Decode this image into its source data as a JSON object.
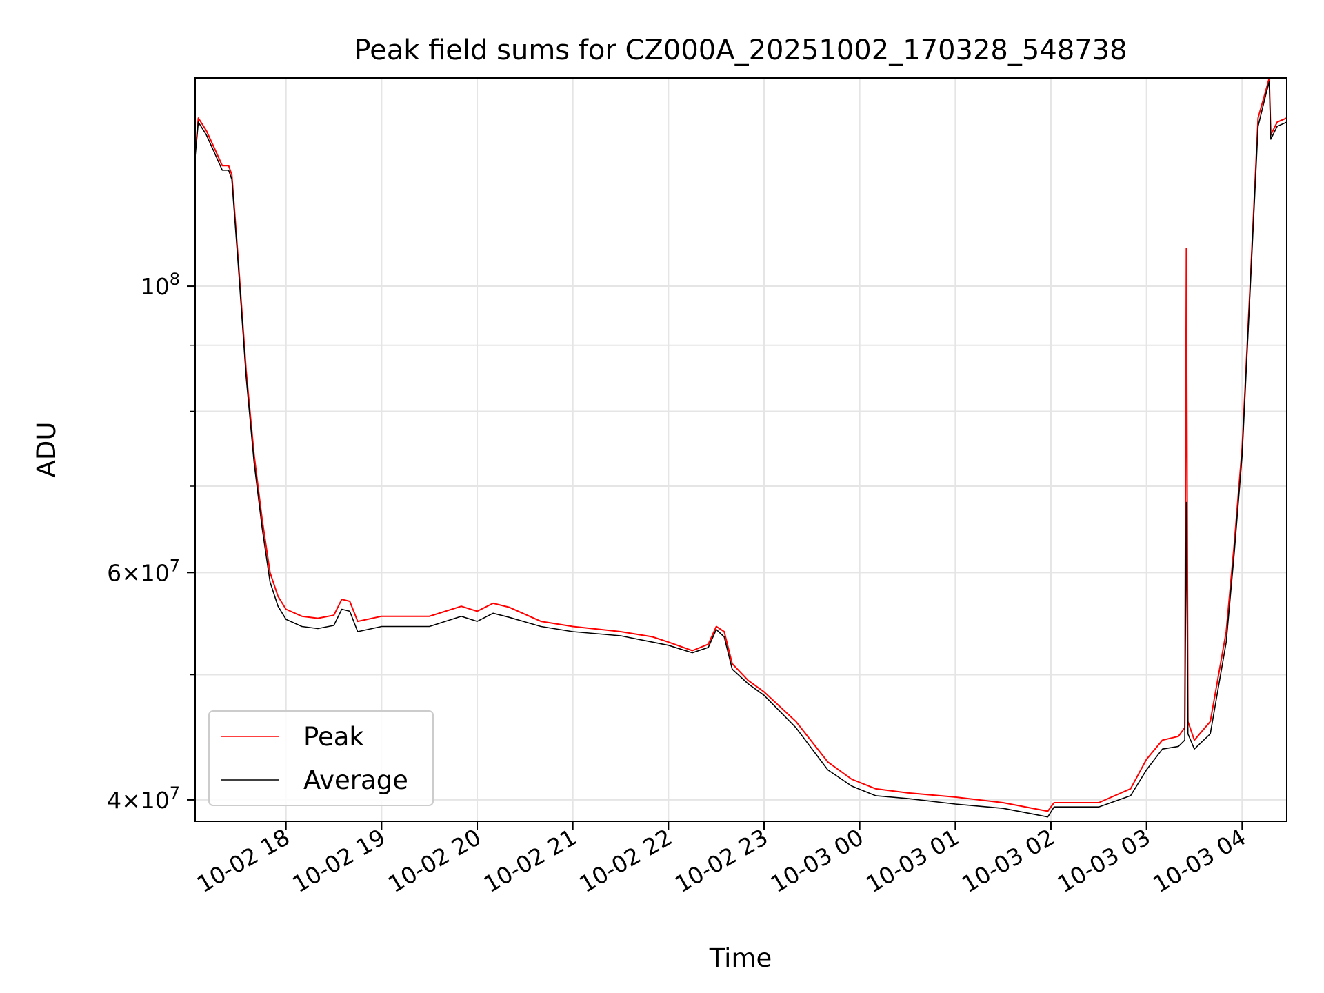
{
  "chart_data": {
    "type": "line",
    "title": "Peak field sums for CZ000A_20251002_170328_548738",
    "xlabel": "Time",
    "ylabel": "ADU",
    "yscale": "log",
    "xlim": [
      "2025-10-02 17:03",
      "2025-10-03 04:28"
    ],
    "ylim": [
      38500000,
      145000000
    ],
    "grid": true,
    "legend_position": "lower-left",
    "x_ticks": [
      {
        "value": "2025-10-02 18:00",
        "label": "10-02 18"
      },
      {
        "value": "2025-10-02 19:00",
        "label": "10-02 19"
      },
      {
        "value": "2025-10-02 20:00",
        "label": "10-02 20"
      },
      {
        "value": "2025-10-02 21:00",
        "label": "10-02 21"
      },
      {
        "value": "2025-10-02 22:00",
        "label": "10-02 22"
      },
      {
        "value": "2025-10-02 23:00",
        "label": "10-02 23"
      },
      {
        "value": "2025-10-03 00:00",
        "label": "10-03 00"
      },
      {
        "value": "2025-10-03 01:00",
        "label": "10-03 01"
      },
      {
        "value": "2025-10-03 02:00",
        "label": "10-03 02"
      },
      {
        "value": "2025-10-03 03:00",
        "label": "10-03 03"
      },
      {
        "value": "2025-10-03 04:00",
        "label": "10-03 04"
      }
    ],
    "y_major_ticks": [
      {
        "value": 40000000,
        "base": "4",
        "exp": "7"
      },
      {
        "value": 60000000,
        "base": "6",
        "exp": "7"
      },
      {
        "value": 100000000,
        "base": "",
        "exp": "8"
      }
    ],
    "y_minor_ticks": [
      50000000,
      70000000,
      80000000,
      90000000
    ],
    "series": [
      {
        "name": "Peak",
        "color": "#ff0000",
        "points": [
          [
            "2025-10-02 17:03",
            127000000.0
          ],
          [
            "2025-10-02 17:05",
            135000000.0
          ],
          [
            "2025-10-02 17:10",
            132000000.0
          ],
          [
            "2025-10-02 17:15",
            128000000.0
          ],
          [
            "2025-10-02 17:20",
            124000000.0
          ],
          [
            "2025-10-02 17:24",
            124000000.0
          ],
          [
            "2025-10-02 17:26",
            122000000.0
          ],
          [
            "2025-10-02 17:30",
            105000000.0
          ],
          [
            "2025-10-02 17:35",
            86000000.0
          ],
          [
            "2025-10-02 17:40",
            74000000.0
          ],
          [
            "2025-10-02 17:45",
            66000000.0
          ],
          [
            "2025-10-02 17:50",
            60000000.0
          ],
          [
            "2025-10-02 17:55",
            57500000.0
          ],
          [
            "2025-10-02 18:00",
            56200000.0
          ],
          [
            "2025-10-02 18:10",
            55500000.0
          ],
          [
            "2025-10-02 18:20",
            55300000.0
          ],
          [
            "2025-10-02 18:30",
            55600000.0
          ],
          [
            "2025-10-02 18:35",
            57200000.0
          ],
          [
            "2025-10-02 18:40",
            57000000.0
          ],
          [
            "2025-10-02 18:45",
            55000000.0
          ],
          [
            "2025-10-02 19:00",
            55500000.0
          ],
          [
            "2025-10-02 19:30",
            55500000.0
          ],
          [
            "2025-10-02 19:50",
            56500000.0
          ],
          [
            "2025-10-02 20:00",
            56000000.0
          ],
          [
            "2025-10-02 20:10",
            56800000.0
          ],
          [
            "2025-10-02 20:20",
            56400000.0
          ],
          [
            "2025-10-02 20:40",
            55000000.0
          ],
          [
            "2025-10-02 21:00",
            54500000.0
          ],
          [
            "2025-10-02 21:30",
            54000000.0
          ],
          [
            "2025-10-02 21:50",
            53500000.0
          ],
          [
            "2025-10-02 22:00",
            53000000.0
          ],
          [
            "2025-10-02 22:15",
            52200000.0
          ],
          [
            "2025-10-02 22:25",
            52800000.0
          ],
          [
            "2025-10-02 22:30",
            54500000.0
          ],
          [
            "2025-10-02 22:35",
            54000000.0
          ],
          [
            "2025-10-02 22:40",
            51000000.0
          ],
          [
            "2025-10-02 22:50",
            49500000.0
          ],
          [
            "2025-10-02 23:00",
            48500000.0
          ],
          [
            "2025-10-02 23:20",
            46000000.0
          ],
          [
            "2025-10-02 23:40",
            42800000.0
          ],
          [
            "2025-10-02 23:55",
            41500000.0
          ],
          [
            "2025-10-03 00:10",
            40800000.0
          ],
          [
            "2025-10-03 00:30",
            40500000.0
          ],
          [
            "2025-10-03 01:00",
            40200000.0
          ],
          [
            "2025-10-03 01:30",
            39800000.0
          ],
          [
            "2025-10-03 01:58",
            39200000.0
          ],
          [
            "2025-10-03 02:02",
            39800000.0
          ],
          [
            "2025-10-03 02:30",
            39800000.0
          ],
          [
            "2025-10-03 02:50",
            40800000.0
          ],
          [
            "2025-10-03 03:00",
            43000000.0
          ],
          [
            "2025-10-03 03:10",
            44500000.0
          ],
          [
            "2025-10-03 03:20",
            44800000.0
          ],
          [
            "2025-10-03 03:24",
            45500000.0
          ],
          [
            "2025-10-03 03:25",
            107000000.0
          ],
          [
            "2025-10-03 03:26",
            46000000.0
          ],
          [
            "2025-10-03 03:30",
            44500000.0
          ],
          [
            "2025-10-03 03:40",
            46000000.0
          ],
          [
            "2025-10-03 03:50",
            54000000.0
          ],
          [
            "2025-10-03 03:55",
            63000000.0
          ],
          [
            "2025-10-03 04:00",
            75000000.0
          ],
          [
            "2025-10-03 04:05",
            100000000.0
          ],
          [
            "2025-10-03 04:10",
            135000000.0
          ],
          [
            "2025-10-03 04:15",
            142000000.0
          ],
          [
            "2025-10-03 04:17",
            145000000.0
          ],
          [
            "2025-10-03 04:18",
            131000000.0
          ],
          [
            "2025-10-03 04:22",
            134000000.0
          ],
          [
            "2025-10-03 04:28",
            135000000.0
          ]
        ]
      },
      {
        "name": "Average",
        "color": "#000000",
        "points": [
          [
            "2025-10-02 17:03",
            126000000.0
          ],
          [
            "2025-10-02 17:05",
            134000000.0
          ],
          [
            "2025-10-02 17:10",
            131000000.0
          ],
          [
            "2025-10-02 17:15",
            127000000.0
          ],
          [
            "2025-10-02 17:20",
            123000000.0
          ],
          [
            "2025-10-02 17:24",
            123000000.0
          ],
          [
            "2025-10-02 17:26",
            121000000.0
          ],
          [
            "2025-10-02 17:30",
            104000000.0
          ],
          [
            "2025-10-02 17:35",
            85000000.0
          ],
          [
            "2025-10-02 17:40",
            73000000.0
          ],
          [
            "2025-10-02 17:45",
            65000000.0
          ],
          [
            "2025-10-02 17:50",
            59000000.0
          ],
          [
            "2025-10-02 17:55",
            56500000.0
          ],
          [
            "2025-10-02 18:00",
            55200000.0
          ],
          [
            "2025-10-02 18:10",
            54500000.0
          ],
          [
            "2025-10-02 18:20",
            54300000.0
          ],
          [
            "2025-10-02 18:30",
            54600000.0
          ],
          [
            "2025-10-02 18:35",
            56200000.0
          ],
          [
            "2025-10-02 18:40",
            56000000.0
          ],
          [
            "2025-10-02 18:45",
            54000000.0
          ],
          [
            "2025-10-02 19:00",
            54500000.0
          ],
          [
            "2025-10-02 19:30",
            54500000.0
          ],
          [
            "2025-10-02 19:50",
            55500000.0
          ],
          [
            "2025-10-02 20:00",
            55000000.0
          ],
          [
            "2025-10-02 20:10",
            55800000.0
          ],
          [
            "2025-10-02 20:20",
            55400000.0
          ],
          [
            "2025-10-02 20:40",
            54500000.0
          ],
          [
            "2025-10-02 21:00",
            54000000.0
          ],
          [
            "2025-10-02 21:30",
            53600000.0
          ],
          [
            "2025-10-02 21:50",
            53000000.0
          ],
          [
            "2025-10-02 22:00",
            52700000.0
          ],
          [
            "2025-10-02 22:15",
            52000000.0
          ],
          [
            "2025-10-02 22:25",
            52500000.0
          ],
          [
            "2025-10-02 22:30",
            54200000.0
          ],
          [
            "2025-10-02 22:35",
            53500000.0
          ],
          [
            "2025-10-02 22:40",
            50500000.0
          ],
          [
            "2025-10-02 22:50",
            49200000.0
          ],
          [
            "2025-10-02 23:00",
            48200000.0
          ],
          [
            "2025-10-02 23:20",
            45500000.0
          ],
          [
            "2025-10-02 23:40",
            42200000.0
          ],
          [
            "2025-10-02 23:55",
            41000000.0
          ],
          [
            "2025-10-03 00:10",
            40300000.0
          ],
          [
            "2025-10-03 00:30",
            40100000.0
          ],
          [
            "2025-10-03 01:00",
            39700000.0
          ],
          [
            "2025-10-03 01:30",
            39400000.0
          ],
          [
            "2025-10-03 01:58",
            38800000.0
          ],
          [
            "2025-10-03 02:02",
            39500000.0
          ],
          [
            "2025-10-03 02:30",
            39500000.0
          ],
          [
            "2025-10-03 02:50",
            40300000.0
          ],
          [
            "2025-10-03 03:00",
            42200000.0
          ],
          [
            "2025-10-03 03:10",
            43800000.0
          ],
          [
            "2025-10-03 03:20",
            44000000.0
          ],
          [
            "2025-10-03 03:24",
            44500000.0
          ],
          [
            "2025-10-03 03:25",
            68000000.0
          ],
          [
            "2025-10-03 03:26",
            45000000.0
          ],
          [
            "2025-10-03 03:30",
            43800000.0
          ],
          [
            "2025-10-03 03:40",
            45000000.0
          ],
          [
            "2025-10-03 03:50",
            53000000.0
          ],
          [
            "2025-10-03 03:55",
            62000000.0
          ],
          [
            "2025-10-03 04:00",
            74000000.0
          ],
          [
            "2025-10-03 04:05",
            99000000.0
          ],
          [
            "2025-10-03 04:10",
            133000000.0
          ],
          [
            "2025-10-03 04:15",
            141000000.0
          ],
          [
            "2025-10-03 04:17",
            144000000.0
          ],
          [
            "2025-10-03 04:18",
            130000000.0
          ],
          [
            "2025-10-03 04:22",
            133000000.0
          ],
          [
            "2025-10-03 04:28",
            134000000.0
          ]
        ]
      }
    ]
  }
}
